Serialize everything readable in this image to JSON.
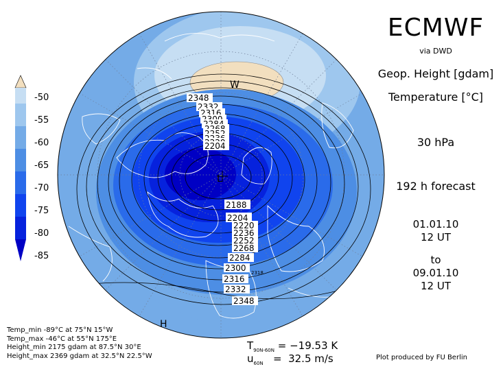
{
  "header": {
    "title": "ECMWF",
    "source": "via DWD",
    "param1": "Geop. Height [gdam]",
    "param2": "Temperature [°C]",
    "level": "30 hPa",
    "forecast": "192 h forecast",
    "init_date": "01.01.10",
    "init_time": "12 UT",
    "to_label": "to",
    "valid_date": "09.01.10",
    "valid_time": "12 UT"
  },
  "legend": {
    "labels": [
      "-50",
      "-55",
      "-60",
      "-65",
      "-70",
      "-75",
      "-80",
      "-85"
    ],
    "colors": [
      "#f2dfbf",
      "#c6def3",
      "#9ec7ee",
      "#74abe7",
      "#4d8ee4",
      "#2a6bea",
      "#1044ee",
      "#0622dd",
      "#0000c4"
    ]
  },
  "stats": {
    "temp_min": "Temp_min -89°C at 75°N 15°W",
    "temp_max": "Temp_max -46°C at 55°N 175°E",
    "height_min": "Height_min 2175 gdam at 87.5°N 30°E",
    "height_max": "Height_max 2369 gdam at 32.5°N 22.5°W"
  },
  "summary": {
    "t_label": "T",
    "t_sub": "90N-60N",
    "t_value": "= −19.53 K",
    "u_label": "u",
    "u_sub": "60N",
    "u_value": "=  32.5 m/s"
  },
  "credit": "Plot produced by FU Berlin",
  "map": {
    "markers": {
      "low": "L",
      "high_1": "H",
      "warm": "W"
    },
    "contour_labels_top": [
      "2348",
      "2332",
      "2316",
      "2300",
      "2284",
      "2268",
      "2252",
      "2236",
      "2220",
      "2204"
    ],
    "contour_labels_bottom": [
      "2188",
      "2204",
      "2220",
      "2236",
      "2252",
      "2268",
      "2284",
      "2300",
      "2316",
      "2332",
      "2348"
    ],
    "small_label": "2318"
  }
}
